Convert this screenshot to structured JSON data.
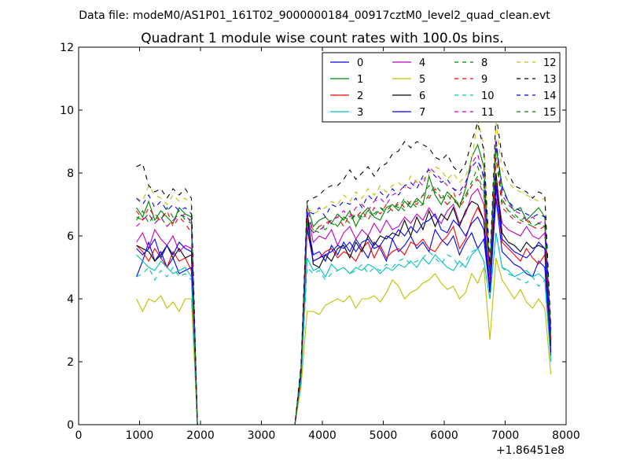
{
  "suptitle": "Data file: modeM0/AS1P01_161T02_9000000184_00917cztM0_level2_quad_clean.evt",
  "chart_data": {
    "type": "line",
    "title": "Quadrant 1 module wise count rates with 100.0s bins.",
    "xlabel": "",
    "ylabel": "",
    "x_offset_label": "+1.86451e8",
    "xlim": [
      0,
      8000
    ],
    "ylim": [
      0,
      12
    ],
    "xticks": [
      0,
      1000,
      2000,
      3000,
      4000,
      5000,
      6000,
      7000,
      8000
    ],
    "yticks": [
      0,
      2,
      4,
      6,
      8,
      10,
      12
    ],
    "grid": false,
    "legend_position": "top-right",
    "legend_columns": 4,
    "x": [
      950,
      1050,
      1150,
      1250,
      1350,
      1450,
      1550,
      1650,
      1750,
      1850,
      1950,
      2050,
      2150,
      2250,
      2350,
      2450,
      2550,
      2650,
      2750,
      2850,
      2950,
      3050,
      3150,
      3250,
      3350,
      3450,
      3550,
      3650,
      3750,
      3850,
      3950,
      4050,
      4150,
      4250,
      4350,
      4450,
      4550,
      4650,
      4750,
      4850,
      4950,
      5050,
      5150,
      5250,
      5350,
      5450,
      5550,
      5650,
      5750,
      5850,
      5950,
      6050,
      6150,
      6250,
      6350,
      6450,
      6550,
      6650,
      6750,
      6850,
      6950,
      7050,
      7150,
      7250,
      7350,
      7450,
      7550,
      7650,
      7750
    ],
    "series": [
      {
        "name": "0",
        "color": "#0000ff",
        "dash": false,
        "values": [
          4.7,
          5.2,
          5.8,
          5.2,
          5.5,
          5.0,
          5.3,
          4.8,
          4.9,
          5.0,
          0,
          0,
          0,
          0,
          0,
          0,
          0,
          0,
          0,
          0,
          0,
          0,
          0,
          0,
          0,
          0,
          0,
          1.5,
          6.5,
          5.4,
          5.5,
          5.2,
          5.7,
          5.4,
          5.8,
          5.5,
          5.9,
          5.6,
          5.3,
          5.8,
          5.6,
          5.2,
          5.9,
          5.5,
          5.7,
          6.0,
          5.6,
          5.8,
          5.5,
          6.2,
          5.9,
          5.7,
          6.0,
          5.4,
          5.8,
          6.1,
          5.6,
          5.9,
          4.2,
          7.2,
          5.5,
          5.3,
          5.1,
          5.0,
          4.8,
          4.7,
          5.2,
          5.0,
          2.2
        ]
      },
      {
        "name": "1",
        "color": "#008000",
        "dash": false,
        "values": [
          6.9,
          6.6,
          7.1,
          6.5,
          6.8,
          6.6,
          6.4,
          6.9,
          6.7,
          6.6,
          0,
          0,
          0,
          0,
          0,
          0,
          0,
          0,
          0,
          0,
          0,
          0,
          0,
          0,
          0,
          0,
          0,
          1.7,
          7.0,
          6.3,
          6.5,
          6.6,
          6.4,
          6.7,
          6.5,
          6.8,
          6.3,
          6.7,
          6.9,
          6.6,
          6.5,
          6.9,
          7.0,
          6.8,
          7.1,
          6.9,
          7.2,
          7.0,
          7.9,
          7.3,
          7.0,
          7.4,
          7.2,
          6.9,
          7.5,
          8.5,
          8.9,
          8.2,
          4.8,
          8.8,
          7.6,
          7.1,
          6.8,
          6.9,
          6.5,
          6.7,
          6.9,
          6.6,
          3.0
        ]
      },
      {
        "name": "2",
        "color": "#ff0000",
        "dash": false,
        "values": [
          5.7,
          5.5,
          5.2,
          5.6,
          5.3,
          5.0,
          5.5,
          5.2,
          5.3,
          4.9,
          0,
          0,
          0,
          0,
          0,
          0,
          0,
          0,
          0,
          0,
          0,
          0,
          0,
          0,
          0,
          0,
          0,
          1.5,
          6.2,
          5.2,
          5.3,
          5.5,
          5.6,
          5.3,
          5.5,
          5.4,
          5.2,
          5.6,
          5.8,
          5.3,
          5.7,
          5.3,
          5.5,
          5.6,
          5.4,
          5.8,
          5.7,
          5.9,
          5.6,
          5.5,
          5.8,
          6.0,
          6.3,
          5.6,
          5.9,
          6.5,
          6.9,
          6.5,
          4.3,
          7.5,
          5.8,
          5.6,
          5.4,
          5.2,
          5.6,
          5.3,
          5.1,
          5.4,
          2.3
        ]
      },
      {
        "name": "3",
        "color": "#00bfbf",
        "dash": false,
        "values": [
          5.4,
          5.2,
          5.0,
          4.9,
          5.2,
          5.0,
          4.8,
          4.9,
          5.0,
          4.7,
          0,
          0,
          0,
          0,
          0,
          0,
          0,
          0,
          0,
          0,
          0,
          0,
          0,
          0,
          0,
          0,
          0,
          1.4,
          5.3,
          4.9,
          5.0,
          4.7,
          5.1,
          4.9,
          5.0,
          4.8,
          5.0,
          4.9,
          5.1,
          5.0,
          4.8,
          5.0,
          4.9,
          5.1,
          5.0,
          5.2,
          5.0,
          5.3,
          5.1,
          5.4,
          5.2,
          5.0,
          4.9,
          5.2,
          5.0,
          5.4,
          5.6,
          5.2,
          4.0,
          6.1,
          5.0,
          4.9,
          4.7,
          4.8,
          4.9,
          4.7,
          4.8,
          4.6,
          2.0
        ]
      },
      {
        "name": "4",
        "color": "#bf00bf",
        "dash": false,
        "values": [
          5.8,
          6.1,
          5.6,
          6.2,
          5.9,
          5.7,
          6.0,
          5.5,
          5.7,
          5.6,
          0,
          0,
          0,
          0,
          0,
          0,
          0,
          0,
          0,
          0,
          0,
          0,
          0,
          0,
          0,
          0,
          0,
          1.6,
          6.7,
          5.8,
          6.0,
          5.9,
          6.2,
          5.7,
          6.1,
          6.3,
          5.9,
          6.2,
          6.0,
          6.4,
          6.1,
          6.5,
          6.2,
          6.3,
          6.6,
          6.4,
          6.7,
          6.5,
          6.9,
          6.6,
          6.4,
          6.8,
          7.0,
          6.4,
          6.7,
          7.3,
          7.5,
          7.0,
          4.6,
          7.7,
          6.4,
          6.2,
          6.1,
          6.0,
          6.3,
          6.0,
          5.9,
          6.1,
          2.6
        ]
      },
      {
        "name": "5",
        "color": "#bfbf00",
        "dash": false,
        "values": [
          4.0,
          3.6,
          4.0,
          3.9,
          4.1,
          3.7,
          3.9,
          3.6,
          4.0,
          4.0,
          0,
          0,
          0,
          0,
          0,
          0,
          0,
          0,
          0,
          0,
          0,
          0,
          0,
          0,
          0,
          0,
          0,
          1.2,
          3.6,
          3.6,
          3.5,
          3.8,
          3.9,
          4.0,
          3.9,
          4.1,
          3.7,
          4.0,
          4.0,
          4.1,
          3.9,
          4.2,
          4.6,
          4.4,
          4.0,
          4.2,
          4.3,
          4.5,
          4.6,
          4.8,
          4.5,
          4.3,
          4.4,
          4.0,
          4.2,
          4.8,
          4.5,
          5.0,
          2.7,
          5.3,
          4.6,
          4.3,
          4.0,
          4.3,
          3.9,
          3.7,
          4.0,
          3.7,
          1.6
        ]
      },
      {
        "name": "6",
        "color": "#000000",
        "dash": false,
        "values": [
          5.7,
          5.6,
          5.5,
          5.2,
          5.4,
          5.7,
          5.3,
          5.6,
          5.3,
          5.4,
          0,
          0,
          0,
          0,
          0,
          0,
          0,
          0,
          0,
          0,
          0,
          0,
          0,
          0,
          0,
          0,
          0,
          1.7,
          6.8,
          5.1,
          5.0,
          5.4,
          5.2,
          5.6,
          5.7,
          5.3,
          5.8,
          5.5,
          6.0,
          5.7,
          6.0,
          5.9,
          6.1,
          6.0,
          6.5,
          6.0,
          6.6,
          6.2,
          6.8,
          6.3,
          6.7,
          6.5,
          6.9,
          6.3,
          6.8,
          7.1,
          7.0,
          6.5,
          4.2,
          8.0,
          6.1,
          5.8,
          5.7,
          5.5,
          5.8,
          5.6,
          5.7,
          5.6,
          2.5
        ]
      },
      {
        "name": "7",
        "color": "#0000ff",
        "dash": false,
        "values": [
          5.6,
          5.4,
          5.6,
          5.9,
          5.3,
          5.7,
          5.4,
          5.8,
          5.6,
          5.5,
          0,
          0,
          0,
          0,
          0,
          0,
          0,
          0,
          0,
          0,
          0,
          0,
          0,
          0,
          0,
          0,
          0,
          1.6,
          6.3,
          5.2,
          5.3,
          5.4,
          5.5,
          5.7,
          5.6,
          5.8,
          5.5,
          5.8,
          5.9,
          5.6,
          5.7,
          6.0,
          5.9,
          6.2,
          6.0,
          6.3,
          6.1,
          6.4,
          6.5,
          6.7,
          6.2,
          6.1,
          6.5,
          6.3,
          6.0,
          6.4,
          6.6,
          6.2,
          4.3,
          7.6,
          5.9,
          5.7,
          5.5,
          5.4,
          5.3,
          5.5,
          5.8,
          5.6,
          2.3
        ]
      },
      {
        "name": "8",
        "color": "#008000",
        "dash": true,
        "values": [
          6.6,
          6.5,
          6.7,
          6.4,
          6.6,
          6.3,
          6.5,
          6.7,
          6.6,
          6.5,
          0,
          0,
          0,
          0,
          0,
          0,
          0,
          0,
          0,
          0,
          0,
          0,
          0,
          0,
          0,
          0,
          0,
          1.7,
          6.6,
          6.2,
          6.1,
          6.4,
          6.5,
          6.3,
          6.6,
          6.4,
          6.7,
          6.5,
          6.8,
          6.6,
          6.9,
          6.7,
          6.9,
          7.0,
          6.8,
          7.1,
          6.9,
          7.0,
          7.3,
          7.6,
          7.4,
          7.0,
          7.2,
          7.0,
          7.3,
          7.6,
          7.9,
          7.4,
          4.8,
          8.5,
          7.2,
          6.8,
          6.7,
          6.5,
          6.6,
          6.3,
          6.4,
          6.3,
          2.8
        ]
      },
      {
        "name": "9",
        "color": "#ff0000",
        "dash": true,
        "values": [
          6.8,
          6.5,
          6.9,
          6.6,
          6.5,
          6.8,
          6.3,
          6.6,
          6.4,
          6.1,
          0,
          0,
          0,
          0,
          0,
          0,
          0,
          0,
          0,
          0,
          0,
          0,
          0,
          0,
          0,
          0,
          0,
          1.7,
          6.5,
          6.2,
          6.3,
          6.4,
          6.5,
          6.6,
          6.3,
          6.7,
          6.6,
          6.8,
          6.5,
          6.9,
          6.7,
          7.0,
          6.8,
          7.1,
          6.9,
          7.1,
          7.0,
          7.3,
          7.2,
          7.5,
          7.2,
          7.0,
          7.4,
          6.9,
          7.2,
          7.6,
          7.8,
          7.3,
          4.7,
          8.5,
          6.9,
          6.7,
          6.5,
          6.4,
          6.5,
          6.3,
          6.2,
          6.3,
          2.7
        ]
      },
      {
        "name": "10",
        "color": "#00bfbf",
        "dash": true,
        "values": [
          4.7,
          4.8,
          5.0,
          4.6,
          4.9,
          4.7,
          5.0,
          4.7,
          4.8,
          4.6,
          0,
          0,
          0,
          0,
          0,
          0,
          0,
          0,
          0,
          0,
          0,
          0,
          0,
          0,
          0,
          0,
          0,
          1.4,
          5.0,
          4.8,
          4.9,
          4.6,
          4.8,
          4.9,
          5.0,
          4.8,
          4.9,
          5.1,
          4.8,
          5.0,
          4.9,
          5.1,
          5.0,
          5.2,
          5.3,
          5.1,
          5.2,
          5.3,
          5.5,
          5.3,
          5.1,
          5.4,
          5.3,
          5.0,
          5.2,
          5.5,
          5.6,
          5.2,
          4.0,
          6.1,
          5.0,
          4.8,
          4.7,
          4.6,
          4.5,
          4.7,
          4.4,
          4.6,
          2.0
        ]
      },
      {
        "name": "11",
        "color": "#bf00bf",
        "dash": true,
        "values": [
          6.3,
          6.5,
          6.7,
          6.4,
          6.6,
          6.3,
          6.5,
          6.6,
          6.7,
          6.4,
          0,
          0,
          0,
          0,
          0,
          0,
          0,
          0,
          0,
          0,
          0,
          0,
          0,
          0,
          0,
          0,
          0,
          1.8,
          6.9,
          6.1,
          6.2,
          6.3,
          6.5,
          6.6,
          6.8,
          6.6,
          6.9,
          7.0,
          6.8,
          7.1,
          7.2,
          7.0,
          7.3,
          7.4,
          7.6,
          7.5,
          7.8,
          7.6,
          8.2,
          8.0,
          7.8,
          7.6,
          7.5,
          7.3,
          7.6,
          8.3,
          8.6,
          7.8,
          4.7,
          9.1,
          7.3,
          7.0,
          6.8,
          6.7,
          6.5,
          6.6,
          6.4,
          6.5,
          2.8
        ]
      },
      {
        "name": "12",
        "color": "#bfbf00",
        "dash": true,
        "values": [
          7.2,
          7.1,
          7.6,
          7.3,
          7.2,
          7.0,
          7.3,
          7.1,
          7.2,
          7.0,
          0,
          0,
          0,
          0,
          0,
          0,
          0,
          0,
          0,
          0,
          0,
          0,
          0,
          0,
          0,
          0,
          0,
          1.9,
          6.9,
          6.7,
          6.8,
          6.9,
          7.1,
          7.0,
          7.3,
          7.1,
          7.4,
          7.2,
          7.5,
          7.3,
          7.6,
          7.4,
          7.6,
          7.7,
          7.5,
          7.9,
          7.7,
          7.8,
          8.0,
          8.2,
          8.1,
          7.8,
          8.0,
          7.7,
          7.9,
          8.4,
          9.7,
          8.9,
          5.0,
          9.6,
          8.1,
          7.7,
          7.5,
          7.4,
          7.3,
          7.2,
          7.1,
          7.2,
          3.0
        ]
      },
      {
        "name": "13",
        "color": "#000000",
        "dash": true,
        "values": [
          8.2,
          8.3,
          7.6,
          7.4,
          7.5,
          7.2,
          7.5,
          7.3,
          7.5,
          7.2,
          0,
          0,
          0,
          0,
          0,
          0,
          0,
          0,
          0,
          0,
          0,
          0,
          0,
          0,
          0,
          0,
          0,
          1.9,
          7.1,
          7.2,
          7.3,
          7.5,
          7.6,
          7.6,
          7.8,
          8.1,
          7.8,
          8.0,
          8.2,
          7.9,
          8.2,
          8.3,
          8.6,
          8.7,
          9.0,
          8.8,
          9.0,
          8.9,
          8.8,
          8.5,
          8.4,
          8.6,
          8.2,
          8.0,
          8.3,
          9.0,
          9.6,
          8.7,
          5.1,
          9.9,
          8.5,
          8.0,
          7.6,
          7.5,
          7.4,
          7.2,
          7.4,
          7.3,
          3.1
        ]
      },
      {
        "name": "14",
        "color": "#0000ff",
        "dash": true,
        "values": [
          7.2,
          7.0,
          7.3,
          6.9,
          7.1,
          6.8,
          7.0,
          6.8,
          6.9,
          6.7,
          0,
          0,
          0,
          0,
          0,
          0,
          0,
          0,
          0,
          0,
          0,
          0,
          0,
          0,
          0,
          0,
          0,
          1.8,
          6.8,
          6.7,
          6.9,
          6.6,
          7.0,
          6.9,
          7.1,
          7.0,
          7.2,
          6.9,
          7.3,
          7.1,
          7.4,
          7.2,
          7.5,
          7.3,
          7.6,
          7.7,
          7.5,
          7.9,
          8.1,
          7.9,
          7.7,
          7.8,
          7.5,
          7.4,
          7.7,
          8.2,
          8.4,
          7.9,
          4.9,
          9.0,
          7.5,
          7.1,
          6.9,
          6.8,
          6.7,
          6.6,
          6.7,
          6.6,
          2.9
        ]
      },
      {
        "name": "15",
        "color": "#008000",
        "dash": true,
        "values": [
          6.5,
          6.8,
          6.4,
          6.7,
          6.5,
          6.9,
          6.6,
          6.8,
          6.5,
          6.4,
          0,
          0,
          0,
          0,
          0,
          0,
          0,
          0,
          0,
          0,
          0,
          0,
          0,
          0,
          0,
          0,
          0,
          1.7,
          6.4,
          6.1,
          6.3,
          6.2,
          6.4,
          6.3,
          6.6,
          6.5,
          6.7,
          6.6,
          6.8,
          6.7,
          6.9,
          6.8,
          7.0,
          6.9,
          7.2,
          7.0,
          7.1,
          7.3,
          7.6,
          7.4,
          7.2,
          7.3,
          7.1,
          7.0,
          7.3,
          7.7,
          8.2,
          7.6,
          4.8,
          8.9,
          7.1,
          6.8,
          6.6,
          6.5,
          6.4,
          6.3,
          6.4,
          6.3,
          2.8
        ]
      }
    ]
  }
}
